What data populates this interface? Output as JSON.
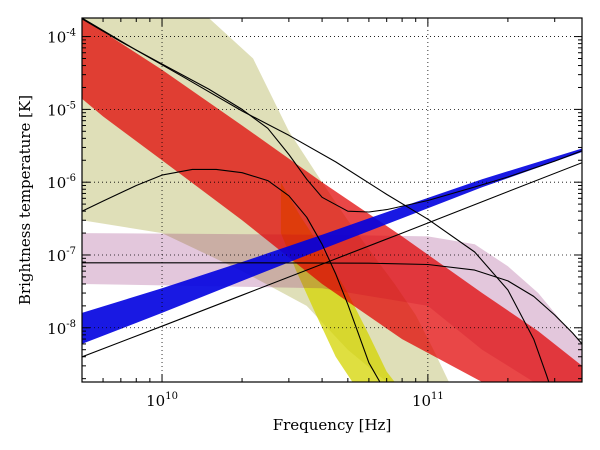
{
  "chart_data": {
    "type": "line",
    "xlabel": "Frequency [Hz]",
    "ylabel": "Brightness temperature [K]",
    "x_scale": "log",
    "y_scale": "log",
    "xlim": [
      5000000000.0,
      380000000000.0
    ],
    "ylim": [
      1.8e-09,
      0.00018
    ],
    "grid": true,
    "x_ticks": [
      {
        "base": "10",
        "exp": "10",
        "value": 10000000000.0
      },
      {
        "base": "10",
        "exp": "11",
        "value": 100000000000.0
      }
    ],
    "y_ticks": [
      {
        "base": "10",
        "exp": "-4",
        "value": 0.0001
      },
      {
        "base": "10",
        "exp": "-5",
        "value": 1e-05
      },
      {
        "base": "10",
        "exp": "-6",
        "value": 1e-06
      },
      {
        "base": "10",
        "exp": "-7",
        "value": 1e-07
      },
      {
        "base": "10",
        "exp": "-8",
        "value": 1e-08
      }
    ],
    "bands": [
      {
        "color": "#8b8b00",
        "opacity": 0.28,
        "upper": [
          [
            5000000000.0,
            0.00018
          ],
          [
            15000000000.0,
            0.00018
          ],
          [
            22000000000.0,
            5e-05
          ],
          [
            30000000000.0,
            5e-06
          ],
          [
            40000000000.0,
            1e-06
          ],
          [
            50000000000.0,
            3e-07
          ],
          [
            60000000000.0,
            1.2e-07
          ],
          [
            75000000000.0,
            4e-08
          ],
          [
            90000000000.0,
            1.5e-08
          ],
          [
            105000000000.0,
            5e-09
          ],
          [
            120000000000.0,
            1.8e-09
          ]
        ],
        "lower": [
          [
            120000000000.0,
            1.8e-09
          ],
          [
            70000000000.0,
            1.8e-09
          ],
          [
            50000000000.0,
            5e-09
          ],
          [
            35000000000.0,
            2e-08
          ],
          [
            20000000000.0,
            6e-08
          ],
          [
            10000000000.0,
            2e-07
          ],
          [
            5000000000.0,
            3e-07
          ]
        ]
      },
      {
        "color": "#d4d400",
        "opacity": 0.75,
        "upper": [
          [
            28000000000.0,
            1e-06
          ],
          [
            33000000000.0,
            3.5e-07
          ],
          [
            40000000000.0,
            1.2e-07
          ],
          [
            50000000000.0,
            3e-08
          ],
          [
            60000000000.0,
            8e-09
          ],
          [
            70000000000.0,
            2.5e-09
          ],
          [
            75000000000.0,
            1.8e-09
          ]
        ],
        "lower": [
          [
            52000000000.0,
            1.8e-09
          ],
          [
            45000000000.0,
            4e-09
          ],
          [
            38000000000.0,
            1.5e-08
          ],
          [
            32000000000.0,
            6e-08
          ],
          [
            28000000000.0,
            2e-07
          ]
        ]
      },
      {
        "color": "#800060",
        "opacity": 0.22,
        "upper": [
          [
            5000000000.0,
            2e-07
          ],
          [
            40000000000.0,
            1.9e-07
          ],
          [
            100000000000.0,
            1.8e-07
          ],
          [
            150000000000.0,
            1.4e-07
          ],
          [
            200000000000.0,
            7e-08
          ],
          [
            260000000000.0,
            3e-08
          ],
          [
            320000000000.0,
            1.2e-08
          ],
          [
            380000000000.0,
            6e-09
          ]
        ],
        "lower": [
          [
            380000000000.0,
            1.8e-09
          ],
          [
            250000000000.0,
            1.8e-09
          ],
          [
            160000000000.0,
            5e-09
          ],
          [
            100000000000.0,
            2e-08
          ],
          [
            40000000000.0,
            3.5e-08
          ],
          [
            5000000000.0,
            4e-08
          ]
        ]
      },
      {
        "color": "#e00000",
        "opacity": 0.72,
        "upper": [
          [
            5000000000.0,
            0.00018
          ],
          [
            10000000000.0,
            3.5e-05
          ],
          [
            20000000000.0,
            6e-06
          ],
          [
            40000000000.0,
            1e-06
          ],
          [
            80000000000.0,
            1.8e-07
          ],
          [
            160000000000.0,
            3e-08
          ],
          [
            260000000000.0,
            9e-09
          ],
          [
            380000000000.0,
            3e-09
          ]
        ],
        "lower": [
          [
            380000000000.0,
            1.8e-09
          ],
          [
            160000000000.0,
            1.8e-09
          ],
          [
            80000000000.0,
            7e-09
          ],
          [
            40000000000.0,
            4e-08
          ],
          [
            20000000000.0,
            3e-07
          ],
          [
            10000000000.0,
            2e-06
          ],
          [
            6000000000.0,
            8e-06
          ],
          [
            5000000000.0,
            1.4e-05
          ]
        ]
      },
      {
        "color": "#0000e0",
        "opacity": 0.9,
        "upper": [
          [
            5000000000.0,
            1.6e-08
          ],
          [
            10000000000.0,
            3.5e-08
          ],
          [
            20000000000.0,
            8e-08
          ],
          [
            40000000000.0,
            1.9e-07
          ],
          [
            80000000000.0,
            4.6e-07
          ],
          [
            160000000000.0,
            1.1e-06
          ],
          [
            380000000000.0,
            2.9e-06
          ]
        ],
        "lower": [
          [
            380000000000.0,
            2.6e-06
          ],
          [
            160000000000.0,
            8.5e-07
          ],
          [
            80000000000.0,
            3.2e-07
          ],
          [
            40000000000.0,
            1.2e-07
          ],
          [
            20000000000.0,
            4.4e-08
          ],
          [
            10000000000.0,
            1.6e-08
          ],
          [
            5000000000.0,
            6e-09
          ]
        ]
      }
    ],
    "lines": [
      {
        "color": "#000000",
        "points": [
          [
            5000000000.0,
            0.000175
          ],
          [
            7000000000.0,
            8.5e-05
          ],
          [
            10000000000.0,
            4.2e-05
          ],
          [
            15000000000.0,
            1.9e-05
          ],
          [
            20000000000.0,
            1e-05
          ],
          [
            25000000000.0,
            5.5e-06
          ],
          [
            30000000000.0,
            2.4e-06
          ],
          [
            35000000000.0,
            1.1e-06
          ],
          [
            40000000000.0,
            6.2e-07
          ],
          [
            50000000000.0,
            4e-07
          ],
          [
            60000000000.0,
            3.9e-07
          ],
          [
            70000000000.0,
            4.2e-07
          ],
          [
            100000000000.0,
            5.6e-07
          ],
          [
            150000000000.0,
            8.6e-07
          ],
          [
            200000000000.0,
            1.18e-06
          ],
          [
            300000000000.0,
            1.95e-06
          ],
          [
            380000000000.0,
            2.7e-06
          ]
        ]
      },
      {
        "color": "#000000",
        "points": [
          [
            5000000000.0,
            0.00018
          ],
          [
            8000000000.0,
            6.5e-05
          ],
          [
            12000000000.0,
            2.8e-05
          ],
          [
            20000000000.0,
            9.5e-06
          ],
          [
            30000000000.0,
            4.4e-06
          ],
          [
            45000000000.0,
            1.9e-06
          ],
          [
            70000000000.0,
            6.8e-07
          ],
          [
            100000000000.0,
            3.1e-07
          ],
          [
            150000000000.0,
            1.1e-07
          ],
          [
            200000000000.0,
            3.3e-08
          ],
          [
            250000000000.0,
            7e-09
          ],
          [
            280000000000.0,
            2.2e-09
          ],
          [
            285000000000.0,
            1.8e-09
          ]
        ]
      },
      {
        "color": "#000000",
        "points": [
          [
            5000000000.0,
            4e-07
          ],
          [
            6000000000.0,
            5.5e-07
          ],
          [
            8000000000.0,
            9e-07
          ],
          [
            10000000000.0,
            1.25e-06
          ],
          [
            13000000000.0,
            1.5e-06
          ],
          [
            16000000000.0,
            1.5e-06
          ],
          [
            20000000000.0,
            1.35e-06
          ],
          [
            25000000000.0,
            1.05e-06
          ],
          [
            30000000000.0,
            6.5e-07
          ],
          [
            35000000000.0,
            3.3e-07
          ],
          [
            40000000000.0,
            1.4e-07
          ],
          [
            45000000000.0,
            5.5e-08
          ],
          [
            50000000000.0,
            2.1e-08
          ],
          [
            55000000000.0,
            8e-09
          ],
          [
            60000000000.0,
            3.3e-09
          ],
          [
            66000000000.0,
            1.8e-09
          ]
        ]
      },
      {
        "color": "#000000",
        "points": [
          [
            5000000000.0,
            7.8e-08
          ],
          [
            20000000000.0,
            7.8e-08
          ],
          [
            60000000000.0,
            7.7e-08
          ],
          [
            100000000000.0,
            7.4e-08
          ],
          [
            150000000000.0,
            6.2e-08
          ],
          [
            200000000000.0,
            4.4e-08
          ],
          [
            250000000000.0,
            2.7e-08
          ],
          [
            300000000000.0,
            1.5e-08
          ],
          [
            350000000000.0,
            8.5e-09
          ],
          [
            380000000000.0,
            6e-09
          ]
        ]
      },
      {
        "color": "#000000",
        "points": [
          [
            5000000000.0,
            4e-09
          ],
          [
            10000000000.0,
            1.05e-08
          ],
          [
            20000000000.0,
            2.8e-08
          ],
          [
            40000000000.0,
            7.5e-08
          ],
          [
            80000000000.0,
            2e-07
          ],
          [
            160000000000.0,
            5.4e-07
          ],
          [
            380000000000.0,
            1.85e-06
          ]
        ]
      }
    ]
  }
}
